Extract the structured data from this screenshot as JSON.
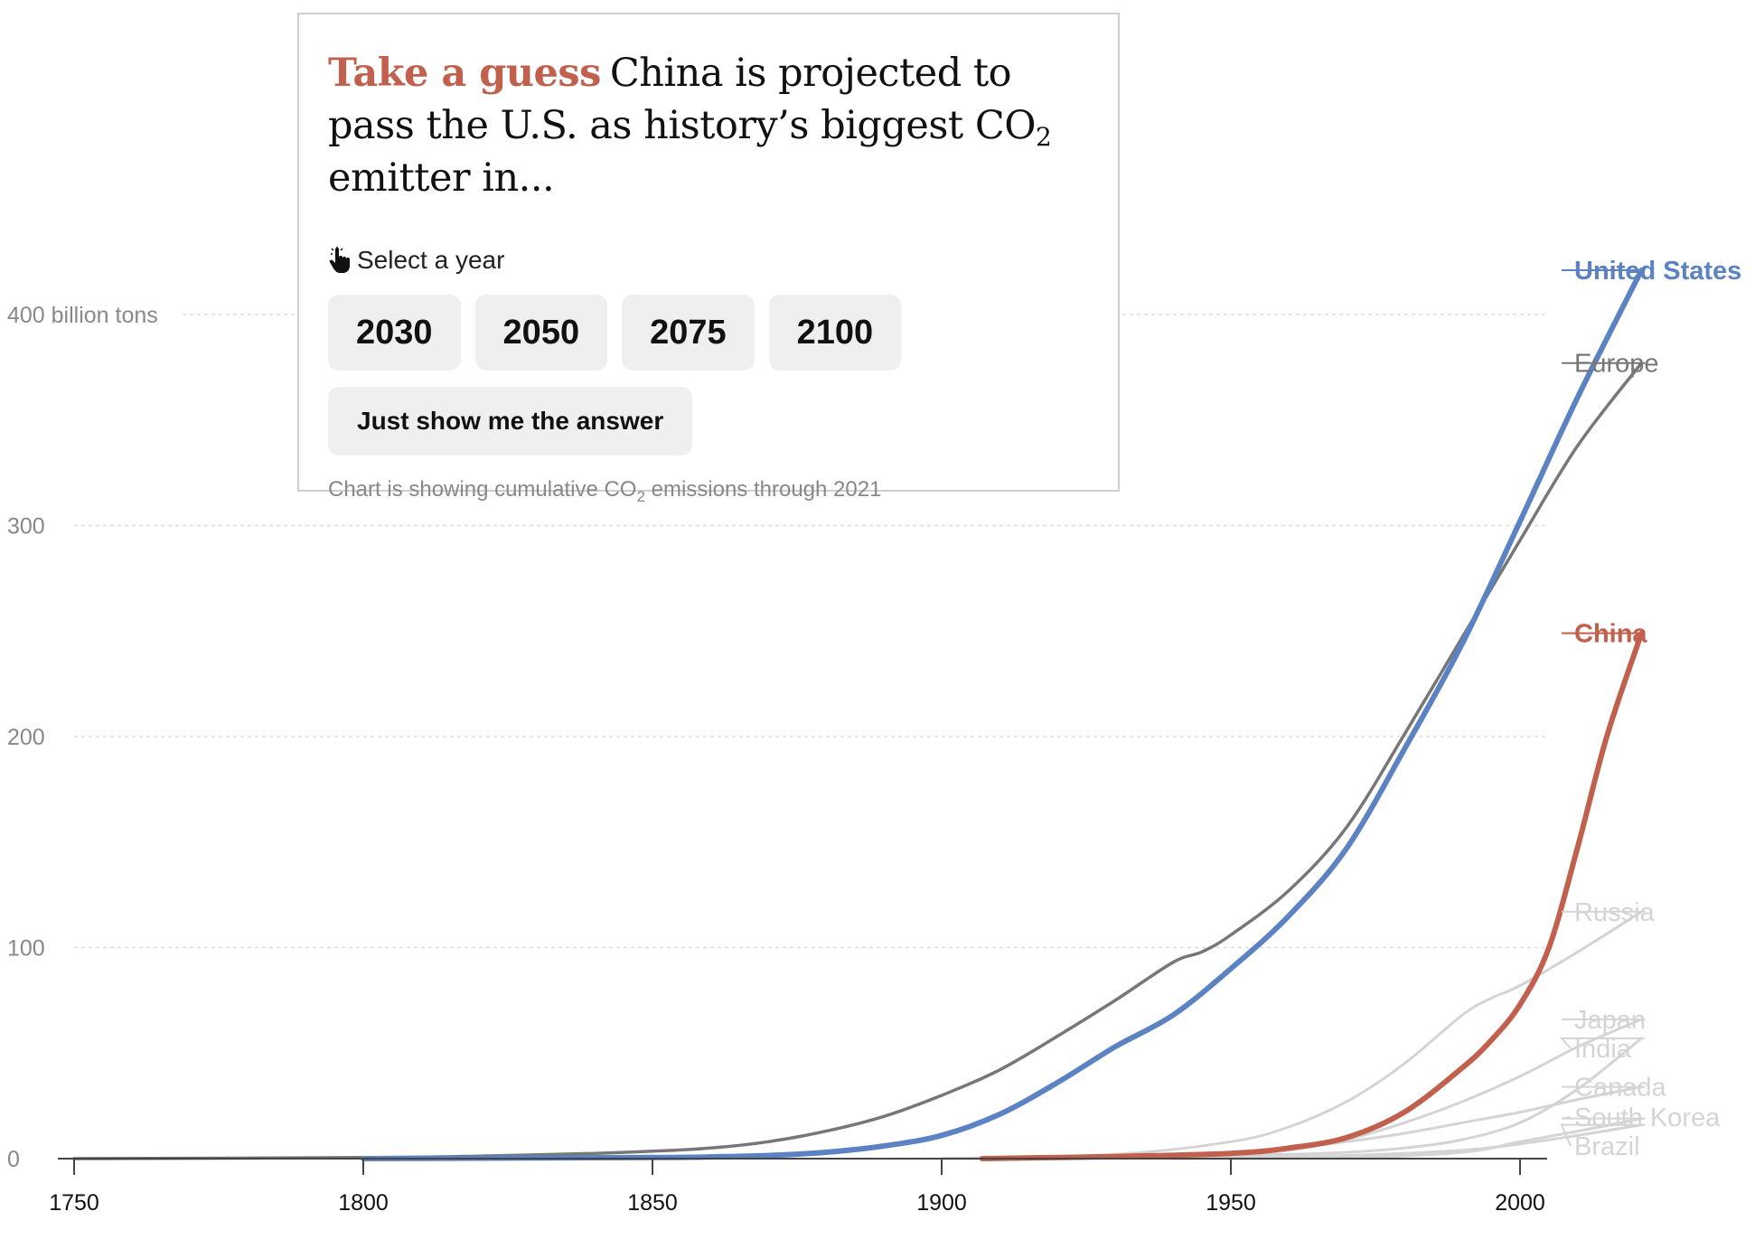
{
  "quiz": {
    "kicker": "Take a guess",
    "question_part1": "China is projected to pass the U.S. as history’s biggest CO",
    "question_sub": "2",
    "question_part2": " emitter in...",
    "prompt": "Select a year",
    "years": [
      "2030",
      "2050",
      "2075",
      "2100"
    ],
    "answer_button": "Just show me the answer",
    "footnote_part1": "Chart is showing cumulative CO",
    "footnote_sub": "2",
    "footnote_part2": " emissions through 2021"
  },
  "chart_data": {
    "type": "line",
    "title": "",
    "xlabel": "",
    "ylabel": "",
    "xlim": [
      1750,
      2021
    ],
    "ylim": [
      0,
      400
    ],
    "x_ticks": [
      1750,
      1800,
      1850,
      1900,
      1950,
      2000
    ],
    "y_ticks": [
      0,
      100,
      200,
      300,
      400
    ],
    "y_tick_labels": [
      "0",
      "100",
      "200",
      "300",
      "400 billion tons"
    ],
    "grid": true,
    "colors": {
      "us": "#5b82c3",
      "china": "#c0604d",
      "europe": "#777777",
      "others": "#d4d4d4",
      "axis": "#444444",
      "grid": "#dddddd"
    },
    "series": [
      {
        "name": "Brazil",
        "color": "others",
        "width": 3,
        "x": [
          1900,
          1950,
          1970,
          1990,
          2000,
          2010,
          2021
        ],
        "y": [
          0,
          0.5,
          1.5,
          4,
          7,
          11,
          16
        ]
      },
      {
        "name": "South Korea",
        "color": "others",
        "width": 3,
        "x": [
          1940,
          1970,
          1990,
          2000,
          2010,
          2021
        ],
        "y": [
          0,
          0.5,
          3,
          8,
          13,
          19
        ]
      },
      {
        "name": "Canada",
        "color": "others",
        "width": 3,
        "x": [
          1900,
          1920,
          1940,
          1950,
          1960,
          1970,
          1980,
          1990,
          2000,
          2010,
          2021
        ],
        "y": [
          0,
          1,
          2,
          3,
          5,
          8,
          12,
          17,
          22,
          28,
          34
        ]
      },
      {
        "name": "India",
        "color": "others",
        "width": 3,
        "x": [
          1900,
          1940,
          1960,
          1970,
          1980,
          1990,
          2000,
          2010,
          2021
        ],
        "y": [
          0,
          1,
          2,
          3,
          5,
          9,
          17,
          33,
          57
        ]
      },
      {
        "name": "Japan",
        "color": "others",
        "width": 3,
        "x": [
          1900,
          1930,
          1950,
          1960,
          1970,
          1980,
          1990,
          2000,
          2010,
          2021
        ],
        "y": [
          0,
          1,
          2,
          4,
          9,
          17,
          27,
          39,
          53,
          66
        ]
      },
      {
        "name": "Russia",
        "color": "others",
        "width": 3,
        "x": [
          1900,
          1930,
          1950,
          1960,
          1970,
          1980,
          1990,
          1995,
          2000,
          2010,
          2021
        ],
        "y": [
          0,
          2,
          8,
          15,
          27,
          45,
          68,
          76,
          82,
          98,
          117
        ]
      },
      {
        "name": "Europe",
        "color": "europe",
        "width": 3.5,
        "x": [
          1750,
          1800,
          1820,
          1840,
          1850,
          1860,
          1870,
          1880,
          1890,
          1900,
          1910,
          1920,
          1930,
          1940,
          1945,
          1950,
          1960,
          1970,
          1980,
          1990,
          2000,
          2010,
          2021
        ],
        "y": [
          0,
          0.5,
          1.2,
          2.5,
          3.5,
          5,
          8,
          13,
          20,
          30,
          42,
          58,
          75,
          93,
          98,
          106,
          127,
          157,
          201,
          247,
          293,
          338,
          377
        ]
      },
      {
        "name": "United States",
        "color": "us",
        "width": 6,
        "x": [
          1800,
          1850,
          1860,
          1870,
          1880,
          1890,
          1900,
          1910,
          1920,
          1930,
          1940,
          1950,
          1960,
          1970,
          1980,
          1990,
          2000,
          2010,
          2021
        ],
        "y": [
          0,
          0.5,
          0.8,
          1.5,
          3,
          6,
          11,
          21,
          36,
          53,
          68,
          90,
          115,
          147,
          194,
          244,
          302,
          361,
          421
        ]
      },
      {
        "name": "China",
        "color": "china",
        "width": 6,
        "x": [
          1907,
          1930,
          1950,
          1960,
          1970,
          1980,
          1990,
          1995,
          2000,
          2005,
          2010,
          2015,
          2021
        ],
        "y": [
          0,
          1,
          2.5,
          5,
          10,
          22,
          43,
          56,
          73,
          100,
          148,
          200,
          249
        ]
      }
    ],
    "labels": [
      {
        "series": "United States",
        "text": "United States",
        "bold": true,
        "color": "us",
        "dy": 0
      },
      {
        "series": "Europe",
        "text": "Europe",
        "bold": false,
        "color": "europe",
        "dy": 0
      },
      {
        "series": "China",
        "text": "China",
        "bold": true,
        "color": "china",
        "dy": 0
      },
      {
        "series": "Russia",
        "text": "Russia",
        "bold": false,
        "color": "others",
        "dy": 0
      },
      {
        "series": "Japan",
        "text": "Japan",
        "bold": false,
        "color": "others",
        "dy": -1
      },
      {
        "series": "India",
        "text": "India",
        "bold": false,
        "color": "others",
        "dy": 1
      },
      {
        "series": "Canada",
        "text": "Canada",
        "bold": false,
        "color": "others",
        "dy": 1
      },
      {
        "series": "South Korea",
        "text": "South Korea",
        "bold": false,
        "color": "others",
        "dy": 1
      },
      {
        "series": "Brazil",
        "text": "Brazil",
        "bold": false,
        "color": "others",
        "dy": 1
      }
    ]
  }
}
